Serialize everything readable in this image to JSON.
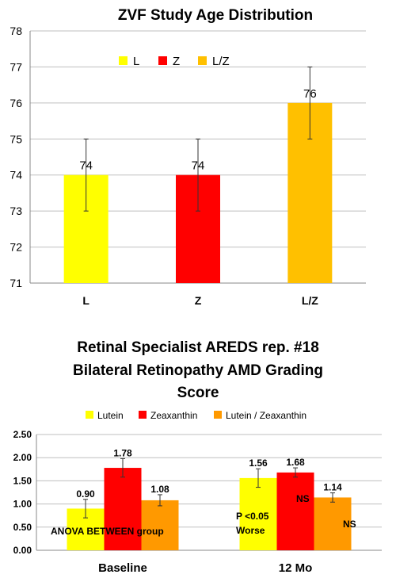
{
  "colors": {
    "yellow": "#FFFF00",
    "red": "#FF0000",
    "gold": "#FFC000",
    "orange": "#FF9900",
    "grid": "#BFBFBF"
  },
  "chart_data": [
    {
      "type": "bar",
      "title": "ZVF Study Age Distribution",
      "categories": [
        "L",
        "Z",
        "L/Z"
      ],
      "values": [
        74,
        74,
        76
      ],
      "data_labels": [
        "74",
        "74",
        "76"
      ],
      "errors": [
        1,
        1,
        1
      ],
      "bar_colors": [
        "#FFFF00",
        "#FF0000",
        "#FFC000"
      ],
      "legend": [
        {
          "label": "L",
          "color": "#FFFF00"
        },
        {
          "label": "Z",
          "color": "#FF0000"
        },
        {
          "label": "L/Z",
          "color": "#FFC000"
        }
      ],
      "legend_position": "top-center",
      "ylim": [
        71,
        78
      ],
      "yticks": [
        71,
        72,
        73,
        74,
        75,
        76,
        77,
        78
      ],
      "grid": true
    },
    {
      "type": "bar",
      "title_lines": [
        "Retinal Specialist AREDS rep. #18",
        "Bilateral Retinopathy  AMD Grading",
        "Score"
      ],
      "categories": [
        "Baseline",
        "12 Mo"
      ],
      "series": [
        {
          "name": "Lutein",
          "color": "#FFFF00",
          "values": [
            0.9,
            1.56
          ],
          "errors": [
            0.2,
            0.2
          ],
          "labels": [
            "0.90",
            "1.56"
          ]
        },
        {
          "name": "Zeaxanthin",
          "color": "#FF0000",
          "values": [
            1.78,
            1.68
          ],
          "errors": [
            0.2,
            0.1
          ],
          "labels": [
            "1.78",
            "1.68"
          ]
        },
        {
          "name": "Lutein / Zeaxanthin",
          "color": "#FF9900",
          "values": [
            1.08,
            1.14
          ],
          "errors": [
            0.12,
            0.1
          ],
          "labels": [
            "1.08",
            "1.14"
          ]
        }
      ],
      "legend_position": "top",
      "ylim": [
        0,
        2.5
      ],
      "yticks": [
        "0.00",
        "0.50",
        "1.00",
        "1.50",
        "2.00",
        "2.50"
      ],
      "annotations": [
        {
          "text": "ANOVA BETWEEN group",
          "category": 0
        },
        {
          "text": "P <0.05",
          "category": 1,
          "series": 0
        },
        {
          "text": "Worse",
          "category": 1,
          "series": 0
        },
        {
          "text": "NS",
          "category": 1,
          "series": 1
        },
        {
          "text": "NS",
          "category": 1,
          "series": 2
        }
      ],
      "grid": true
    }
  ]
}
